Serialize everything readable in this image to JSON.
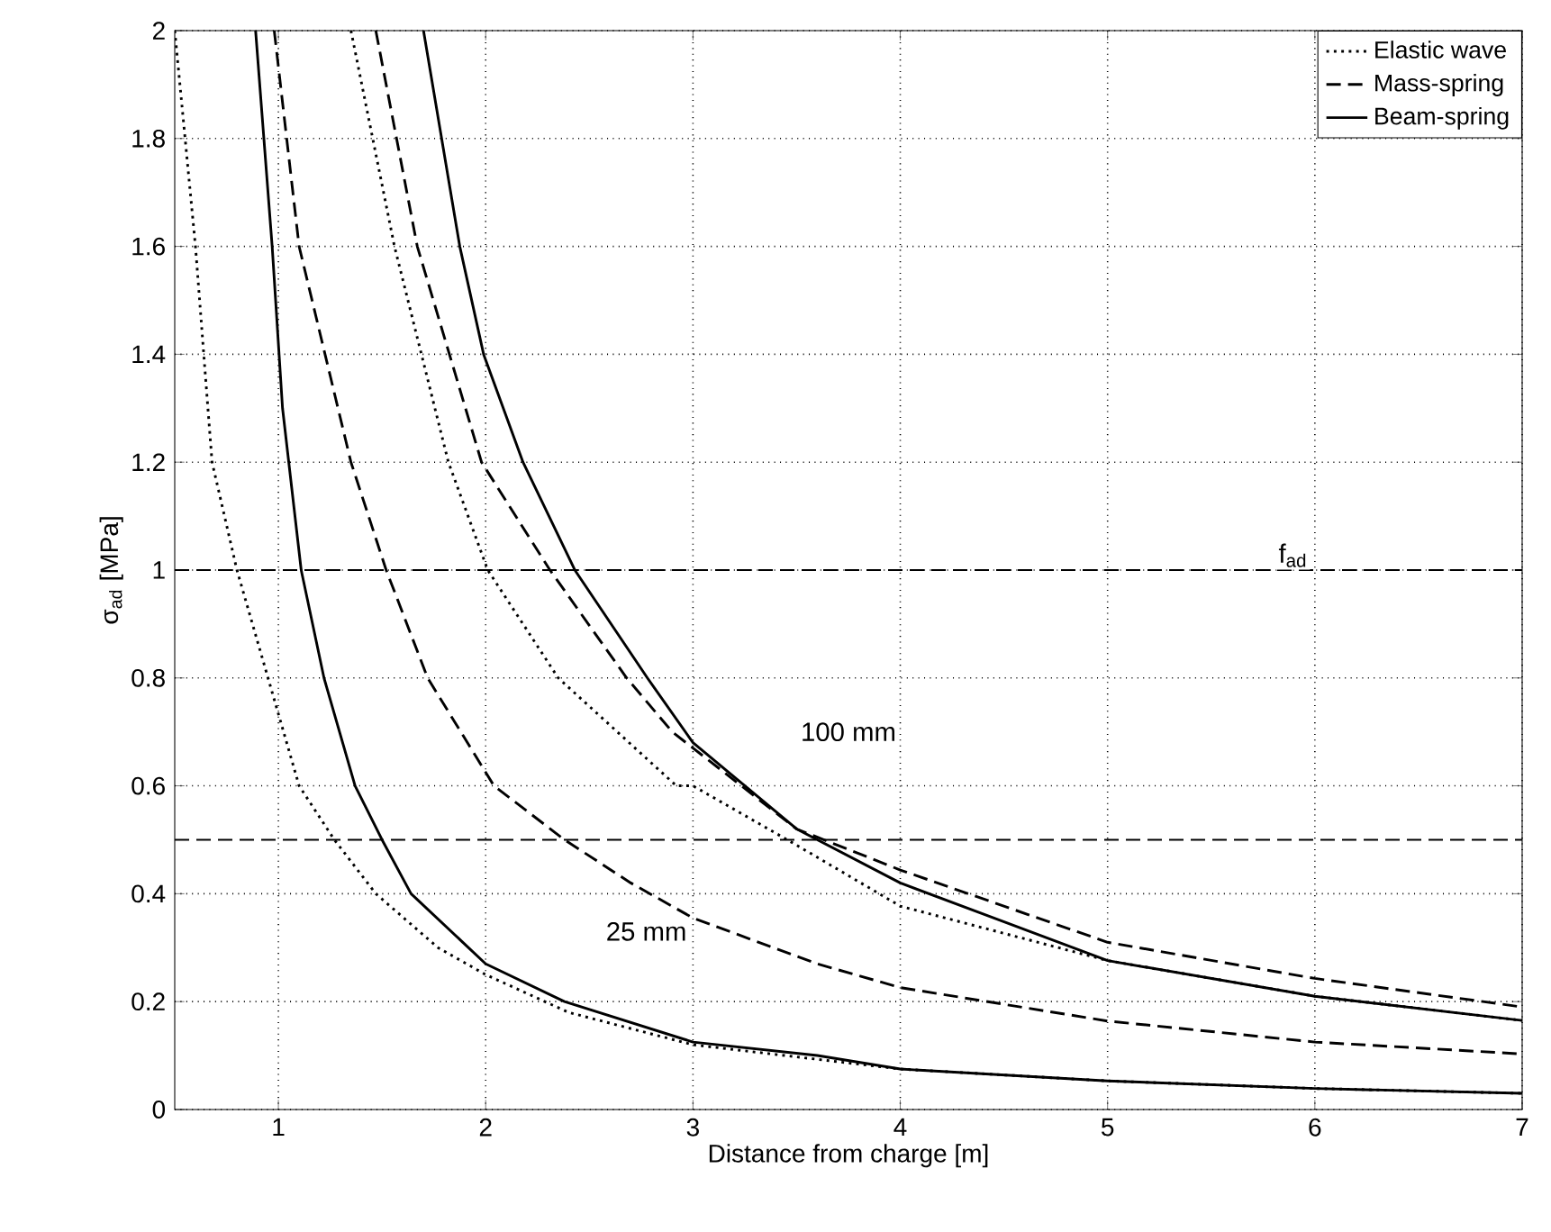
{
  "chart_data": {
    "type": "line",
    "xlabel": "Distance from charge [m]",
    "ylabel": "σ$_{ad}$  [MPa]",
    "xlim": [
      0.5,
      7
    ],
    "ylim": [
      0,
      2
    ],
    "xticks": [
      1,
      2,
      3,
      4,
      5,
      6,
      7
    ],
    "yticks": [
      0,
      0.2,
      0.4,
      0.6,
      0.8,
      1,
      1.2,
      1.4,
      1.6,
      1.8,
      2
    ],
    "grid": true,
    "legend": "top right",
    "marker": "none",
    "series": [
      {
        "name": "Elastic wave",
        "color": "#000000",
        "line_style": "dotted",
        "x": [
          0.5,
          0.6,
          0.68,
          0.8,
          0.95,
          1.1,
          1.27,
          1.47,
          1.77,
          2.0,
          2.4,
          3,
          4,
          5,
          6,
          7
        ],
        "values": [
          2,
          1.6,
          1.2,
          1,
          0.8,
          0.6,
          0.5,
          0.4,
          0.3,
          0.25,
          0.18,
          0.12,
          0.075,
          0.053,
          0.039,
          0.03
        ]
      },
      {
        "name": "Mass-spring",
        "color": "#000000",
        "line_style": "dashed",
        "x": [
          0.98,
          1.1,
          1.35,
          1.52,
          1.72,
          2.04,
          2.38,
          2.7,
          3,
          3.6,
          4,
          5,
          6,
          7
        ],
        "values": [
          2,
          1.6,
          1.2,
          1,
          0.8,
          0.6,
          0.5,
          0.42,
          0.355,
          0.27,
          0.226,
          0.164,
          0.125,
          0.103
        ]
      },
      {
        "name": "Beam-spring",
        "color": "#000000",
        "line_style": "solid",
        "x": [
          0.89,
          0.97,
          1.02,
          1.11,
          1.22,
          1.37,
          1.5,
          1.64,
          2.0,
          2.38,
          3,
          3.6,
          4,
          5,
          6,
          7
        ],
        "values": [
          2,
          1.6,
          1.3,
          1,
          0.8,
          0.6,
          0.5,
          0.4,
          0.27,
          0.2,
          0.125,
          0.1,
          0.075,
          0.053,
          0.039,
          0.03
        ]
      },
      {
        "color": "#000000",
        "line_style": "dotted",
        "x": [
          1.35,
          1.56,
          1.82,
          2.01,
          2.35,
          2.92,
          3,
          3.5,
          4,
          5,
          6,
          7
        ],
        "values": [
          2,
          1.6,
          1.2,
          1,
          0.8,
          0.6,
          0.6,
          0.49,
          0.377,
          0.276,
          0.21,
          0.165
        ]
      },
      {
        "color": "#000000",
        "line_style": "dashed",
        "x": [
          1.47,
          1.67,
          1.98,
          2.31,
          2.68,
          2.9,
          3,
          3.5,
          4,
          5,
          6,
          7
        ],
        "values": [
          2,
          1.6,
          1.2,
          1,
          0.8,
          0.7,
          0.67,
          0.52,
          0.444,
          0.31,
          0.243,
          0.19
        ]
      },
      {
        "color": "#000000",
        "line_style": "solid",
        "x": [
          1.7,
          1.875,
          1.99,
          2.18,
          2.43,
          2.78,
          3,
          3.5,
          4,
          5,
          6,
          7
        ],
        "values": [
          2,
          1.6,
          1.4,
          1.2,
          1,
          0.8,
          0.68,
          0.52,
          0.42,
          0.276,
          0.21,
          0.165
        ]
      }
    ],
    "ref_lines": [
      {
        "axis": "y",
        "value": 1,
        "label": "f$_{ad}$",
        "line_style": "dashed"
      },
      {
        "axis": "y",
        "value": 0.5,
        "line_style": "dashed"
      }
    ],
    "annotations": [
      "100 mm",
      "25 mm"
    ]
  }
}
